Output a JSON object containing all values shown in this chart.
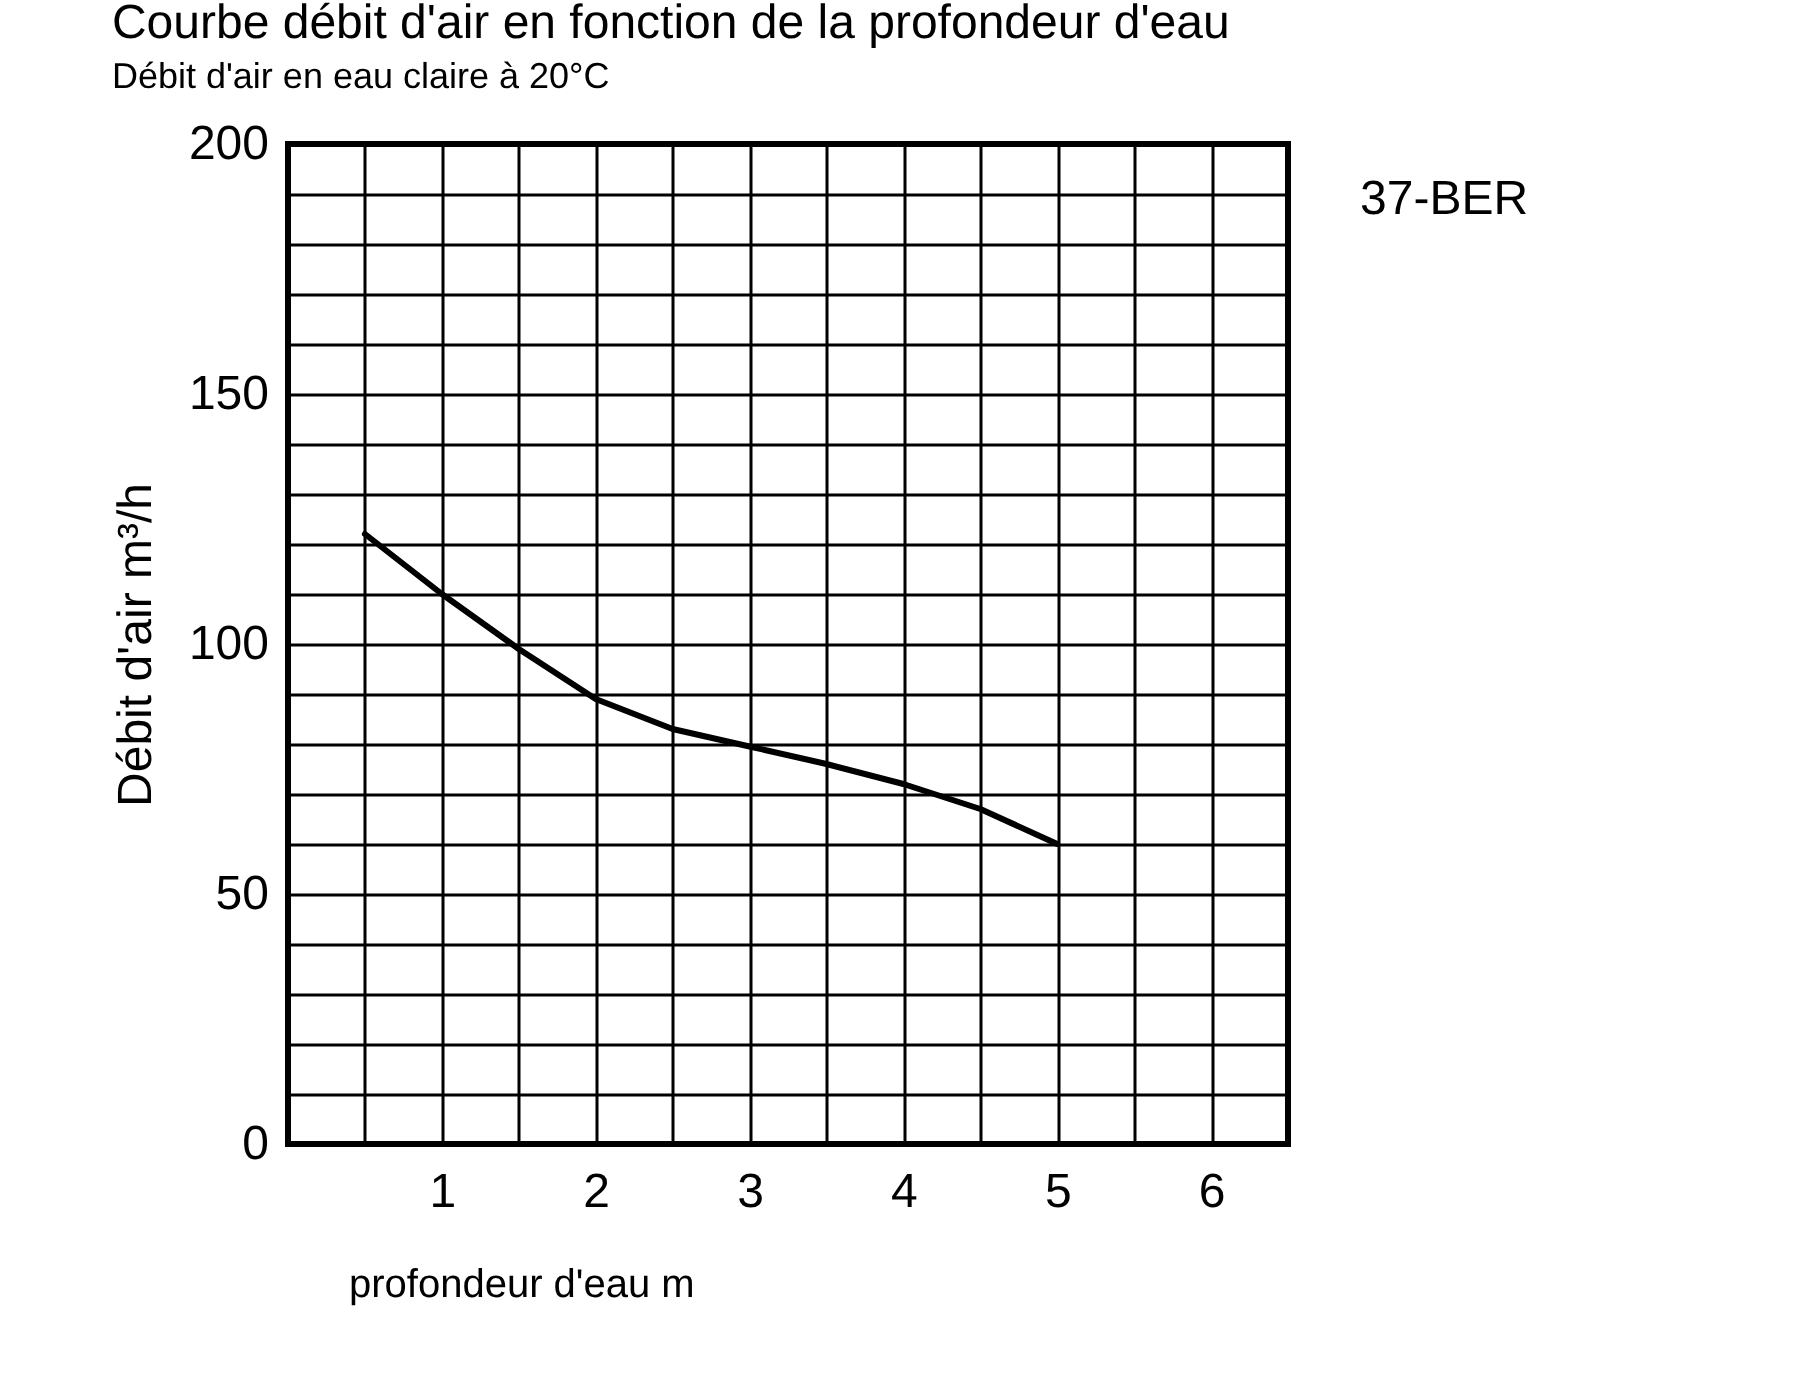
{
  "chart_data": {
    "type": "line",
    "title": "Courbe débit d'air en fonction de la profondeur d'eau",
    "subtitle": "Débit d'air en eau claire à 20°C",
    "xlabel": "profondeur d'eau m",
    "ylabel": "Débit d'air m³/h",
    "annotations": [
      "37-BER"
    ],
    "x": [
      0.5,
      1,
      1.5,
      2,
      2.5,
      3,
      3.5,
      4,
      4.5,
      5
    ],
    "series": [
      {
        "color": "#000000",
        "values": [
          122,
          110,
          99,
          89,
          83,
          79.5,
          76,
          72,
          67,
          60
        ]
      }
    ],
    "xlim": [
      0,
      6.5
    ],
    "xticks": [
      {
        "value": 0.5,
        "label": null
      },
      1,
      {
        "value": 1.5,
        "label": null
      },
      2,
      {
        "value": 2.5,
        "label": null
      },
      3,
      {
        "value": 3.5,
        "label": null
      },
      4,
      {
        "value": 4.5,
        "label": null
      },
      5,
      {
        "value": 5.5,
        "label": null
      },
      6
    ],
    "ylim": [
      0,
      200
    ],
    "yticks": [
      0,
      {
        "value": 10,
        "label": null
      },
      {
        "value": 20,
        "label": null
      },
      {
        "value": 30,
        "label": null
      },
      {
        "value": 40,
        "label": null
      },
      50,
      {
        "value": 60,
        "label": null
      },
      {
        "value": 70,
        "label": null
      },
      {
        "value": 80,
        "label": null
      },
      {
        "value": 90,
        "label": null
      },
      100,
      {
        "value": 110,
        "label": null
      },
      {
        "value": 120,
        "label": null
      },
      {
        "value": 130,
        "label": null
      },
      {
        "value": 140,
        "label": null
      },
      150,
      {
        "value": 160,
        "label": null
      },
      {
        "value": 170,
        "label": null
      },
      {
        "value": 180,
        "label": null
      },
      {
        "value": 190,
        "label": null
      },
      200
    ],
    "grid": true,
    "marker": "none",
    "line_style": "solid"
  }
}
